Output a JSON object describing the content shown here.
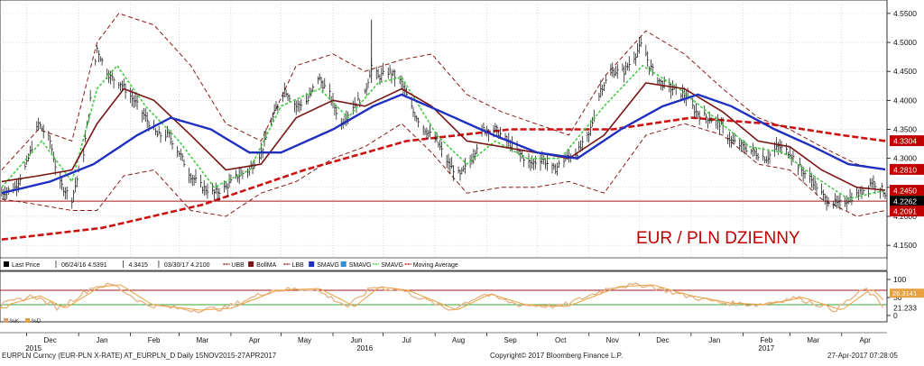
{
  "chart_data": {
    "type": "line",
    "annotation": "EUR / PLN DZIENNY",
    "instrument_line": "EURPLN Curncy (EUR-PLN X-RATE) AT_EURPLN_D  Daily 15NOV2015-27APR2017",
    "copyright": "Copyright© 2017 Bloomberg Finance L.P.",
    "timestamp": "27-Apr-2017 07:28:05",
    "x_range": [
      "2015-11-15",
      "2017-04-27"
    ],
    "ylim": [
      4.13,
      4.57
    ],
    "y_ticks": [
      4.15,
      4.2,
      4.25,
      4.3,
      4.35,
      4.4,
      4.45,
      4.5,
      4.55
    ],
    "y_tick_labels": [
      "4.1500",
      "4.2000",
      "4.2500",
      "4.3000",
      "4.3500",
      "4.4000",
      "4.4500",
      "4.5000",
      "4.5500"
    ],
    "x_ticks": [
      {
        "label": "Dec",
        "date": "2015-12-15"
      },
      {
        "label": "Jan",
        "date": "2016-01-15"
      },
      {
        "label": "Feb",
        "date": "2016-02-15"
      },
      {
        "label": "Mar",
        "date": "2016-03-15"
      },
      {
        "label": "Apr",
        "date": "2016-04-15"
      },
      {
        "label": "May",
        "date": "2016-05-15"
      },
      {
        "label": "Jun",
        "date": "2016-06-15"
      },
      {
        "label": "Jul",
        "date": "2016-07-15"
      },
      {
        "label": "Aug",
        "date": "2016-08-15"
      },
      {
        "label": "Sep",
        "date": "2016-09-15"
      },
      {
        "label": "Oct",
        "date": "2016-10-15"
      },
      {
        "label": "Nov",
        "date": "2016-11-15"
      },
      {
        "label": "Dec",
        "date": "2016-12-15"
      },
      {
        "label": "Jan",
        "date": "2017-01-15"
      },
      {
        "label": "Feb",
        "date": "2017-02-15"
      },
      {
        "label": "Mar",
        "date": "2017-03-15"
      },
      {
        "label": "Apr",
        "date": "2017-04-15"
      }
    ],
    "year_labels": [
      {
        "label": "2015",
        "date": "2015-12-05"
      },
      {
        "label": "2016",
        "date": "2016-06-20"
      },
      {
        "label": "2017",
        "date": "2017-02-15"
      }
    ],
    "support_level": 4.2262,
    "current_labels": [
      {
        "value": 4.3304,
        "label": "4.3304",
        "color": "#c00000"
      },
      {
        "value": 4.281,
        "label": "4.2810",
        "color": "#c00000"
      },
      {
        "value": 4.245,
        "label": "4.2450",
        "color": "#c00000"
      },
      {
        "value": 4.2262,
        "label": "4.2262",
        "color": "#000000"
      },
      {
        "value": 4.2091,
        "label": "4.2091",
        "color": "#c00000"
      }
    ],
    "legend": [
      {
        "text": "Last Price",
        "color": "#000000",
        "kind": "box"
      },
      {
        "text": "06/24/16 4.5391",
        "color": "#555555",
        "kind": "tick"
      },
      {
        "text": "4.3415",
        "color": "#555555",
        "kind": "tick"
      },
      {
        "text": "03/30/17 4.2100",
        "color": "#555555",
        "kind": "tick"
      },
      {
        "text": "UBB",
        "color": "#8b1a1a",
        "kind": "dash"
      },
      {
        "text": "BollMA",
        "color": "#7a1515",
        "kind": "box"
      },
      {
        "text": "LBB",
        "color": "#8b1a1a",
        "kind": "dash"
      },
      {
        "text": "SMAVG",
        "color": "#1f2fbf",
        "kind": "box"
      },
      {
        "text": "SMAVG",
        "color": "#2f8ed8",
        "kind": "box"
      },
      {
        "text": "SMAVG",
        "color": "#44cc44",
        "kind": "dash"
      },
      {
        "text": "Moving Average",
        "color": "#cc1111",
        "kind": "dash"
      }
    ],
    "price": [
      [
        "2015-11-16",
        4.24
      ],
      [
        "2015-11-24",
        4.25
      ],
      [
        "2015-12-01",
        4.29
      ],
      [
        "2015-12-08",
        4.36
      ],
      [
        "2015-12-15",
        4.33
      ],
      [
        "2015-12-20",
        4.26
      ],
      [
        "2015-12-28",
        4.23
      ],
      [
        "2016-01-04",
        4.31
      ],
      [
        "2016-01-08",
        4.4
      ],
      [
        "2016-01-12",
        4.49
      ],
      [
        "2016-01-16",
        4.46
      ],
      [
        "2016-01-20",
        4.44
      ],
      [
        "2016-01-26",
        4.43
      ],
      [
        "2016-02-03",
        4.4
      ],
      [
        "2016-02-10",
        4.37
      ],
      [
        "2016-02-17",
        4.34
      ],
      [
        "2016-02-24",
        4.34
      ],
      [
        "2016-03-01",
        4.31
      ],
      [
        "2016-03-08",
        4.27
      ],
      [
        "2016-03-15",
        4.25
      ],
      [
        "2016-03-22",
        4.24
      ],
      [
        "2016-03-29",
        4.25
      ],
      [
        "2016-04-05",
        4.27
      ],
      [
        "2016-04-12",
        4.28
      ],
      [
        "2016-04-19",
        4.31
      ],
      [
        "2016-04-26",
        4.37
      ],
      [
        "2016-05-03",
        4.42
      ],
      [
        "2016-05-10",
        4.39
      ],
      [
        "2016-05-17",
        4.4
      ],
      [
        "2016-05-23",
        4.44
      ],
      [
        "2016-05-30",
        4.41
      ],
      [
        "2016-06-06",
        4.36
      ],
      [
        "2016-06-13",
        4.39
      ],
      [
        "2016-06-20",
        4.41
      ],
      [
        "2016-06-24",
        4.46
      ],
      [
        "2016-06-28",
        4.44
      ],
      [
        "2016-07-05",
        4.45
      ],
      [
        "2016-07-12",
        4.43
      ],
      [
        "2016-07-19",
        4.38
      ],
      [
        "2016-07-26",
        4.35
      ],
      [
        "2016-08-02",
        4.33
      ],
      [
        "2016-08-09",
        4.29
      ],
      [
        "2016-08-16",
        4.27
      ],
      [
        "2016-08-23",
        4.3
      ],
      [
        "2016-08-30",
        4.35
      ],
      [
        "2016-09-06",
        4.35
      ],
      [
        "2016-09-13",
        4.33
      ],
      [
        "2016-09-20",
        4.31
      ],
      [
        "2016-09-27",
        4.29
      ],
      [
        "2016-10-04",
        4.3
      ],
      [
        "2016-10-11",
        4.28
      ],
      [
        "2016-10-18",
        4.3
      ],
      [
        "2016-10-25",
        4.31
      ],
      [
        "2016-11-01",
        4.34
      ],
      [
        "2016-11-08",
        4.42
      ],
      [
        "2016-11-15",
        4.45
      ],
      [
        "2016-11-22",
        4.45
      ],
      [
        "2016-11-29",
        4.48
      ],
      [
        "2016-12-03",
        4.5
      ],
      [
        "2016-12-07",
        4.46
      ],
      [
        "2016-12-14",
        4.43
      ],
      [
        "2016-12-21",
        4.42
      ],
      [
        "2016-12-28",
        4.41
      ],
      [
        "2017-01-04",
        4.38
      ],
      [
        "2017-01-11",
        4.37
      ],
      [
        "2017-01-18",
        4.36
      ],
      [
        "2017-01-25",
        4.33
      ],
      [
        "2017-02-01",
        4.32
      ],
      [
        "2017-02-08",
        4.31
      ],
      [
        "2017-02-15",
        4.3
      ],
      [
        "2017-02-22",
        4.32
      ],
      [
        "2017-03-01",
        4.31
      ],
      [
        "2017-03-08",
        4.28
      ],
      [
        "2017-03-15",
        4.26
      ],
      [
        "2017-03-22",
        4.23
      ],
      [
        "2017-03-30",
        4.22
      ],
      [
        "2017-04-05",
        4.23
      ],
      [
        "2017-04-12",
        4.24
      ],
      [
        "2017-04-19",
        4.26
      ],
      [
        "2017-04-24",
        4.25
      ],
      [
        "2017-04-27",
        4.24
      ]
    ],
    "bollma": [
      [
        "2015-11-16",
        4.26
      ],
      [
        "2015-12-08",
        4.27
      ],
      [
        "2015-12-28",
        4.28
      ],
      [
        "2016-01-12",
        4.36
      ],
      [
        "2016-01-28",
        4.42
      ],
      [
        "2016-02-15",
        4.4
      ],
      [
        "2016-03-08",
        4.34
      ],
      [
        "2016-03-29",
        4.28
      ],
      [
        "2016-04-19",
        4.29
      ],
      [
        "2016-05-10",
        4.37
      ],
      [
        "2016-06-01",
        4.4
      ],
      [
        "2016-06-20",
        4.39
      ],
      [
        "2016-07-12",
        4.42
      ],
      [
        "2016-07-30",
        4.39
      ],
      [
        "2016-08-20",
        4.33
      ],
      [
        "2016-09-10",
        4.32
      ],
      [
        "2016-09-30",
        4.31
      ],
      [
        "2016-10-20",
        4.3
      ],
      [
        "2016-11-10",
        4.34
      ],
      [
        "2016-12-05",
        4.43
      ],
      [
        "2016-12-28",
        4.42
      ],
      [
        "2017-01-20",
        4.38
      ],
      [
        "2017-02-10",
        4.33
      ],
      [
        "2017-03-01",
        4.32
      ],
      [
        "2017-03-20",
        4.28
      ],
      [
        "2017-04-10",
        4.25
      ],
      [
        "2017-04-27",
        4.245
      ]
    ],
    "ubb": [
      [
        "2015-11-16",
        4.28
      ],
      [
        "2015-12-08",
        4.35
      ],
      [
        "2015-12-28",
        4.33
      ],
      [
        "2016-01-12",
        4.5
      ],
      [
        "2016-01-25",
        4.55
      ],
      [
        "2016-02-15",
        4.53
      ],
      [
        "2016-03-08",
        4.46
      ],
      [
        "2016-03-29",
        4.36
      ],
      [
        "2016-04-19",
        4.33
      ],
      [
        "2016-05-10",
        4.46
      ],
      [
        "2016-06-01",
        4.48
      ],
      [
        "2016-06-20",
        4.45
      ],
      [
        "2016-07-12",
        4.47
      ],
      [
        "2016-07-30",
        4.48
      ],
      [
        "2016-08-20",
        4.41
      ],
      [
        "2016-09-10",
        4.38
      ],
      [
        "2016-09-30",
        4.36
      ],
      [
        "2016-10-20",
        4.34
      ],
      [
        "2016-11-10",
        4.44
      ],
      [
        "2016-12-05",
        4.52
      ],
      [
        "2016-12-28",
        4.48
      ],
      [
        "2017-01-20",
        4.42
      ],
      [
        "2017-02-10",
        4.37
      ],
      [
        "2017-03-01",
        4.35
      ],
      [
        "2017-03-20",
        4.32
      ],
      [
        "2017-04-10",
        4.29
      ],
      [
        "2017-04-27",
        4.28
      ]
    ],
    "lbb": [
      [
        "2015-11-16",
        4.23
      ],
      [
        "2015-12-08",
        4.22
      ],
      [
        "2015-12-28",
        4.21
      ],
      [
        "2016-01-12",
        4.21
      ],
      [
        "2016-01-28",
        4.27
      ],
      [
        "2016-02-15",
        4.28
      ],
      [
        "2016-03-08",
        4.21
      ],
      [
        "2016-03-29",
        4.2
      ],
      [
        "2016-04-19",
        4.24
      ],
      [
        "2016-05-10",
        4.26
      ],
      [
        "2016-06-01",
        4.3
      ],
      [
        "2016-06-20",
        4.32
      ],
      [
        "2016-07-12",
        4.36
      ],
      [
        "2016-07-30",
        4.31
      ],
      [
        "2016-08-20",
        4.24
      ],
      [
        "2016-09-10",
        4.25
      ],
      [
        "2016-09-30",
        4.25
      ],
      [
        "2016-10-20",
        4.26
      ],
      [
        "2016-11-10",
        4.24
      ],
      [
        "2016-12-05",
        4.34
      ],
      [
        "2016-12-28",
        4.36
      ],
      [
        "2017-01-20",
        4.34
      ],
      [
        "2017-02-10",
        4.29
      ],
      [
        "2017-03-01",
        4.28
      ],
      [
        "2017-03-20",
        4.23
      ],
      [
        "2017-04-10",
        4.2
      ],
      [
        "2017-04-27",
        4.21
      ]
    ],
    "sma_short": [
      [
        "2015-11-16",
        4.25
      ],
      [
        "2015-12-10",
        4.33
      ],
      [
        "2015-12-28",
        4.26
      ],
      [
        "2016-01-12",
        4.42
      ],
      [
        "2016-01-24",
        4.46
      ],
      [
        "2016-02-10",
        4.39
      ],
      [
        "2016-03-01",
        4.33
      ],
      [
        "2016-03-22",
        4.25
      ],
      [
        "2016-04-12",
        4.28
      ],
      [
        "2016-05-01",
        4.39
      ],
      [
        "2016-05-24",
        4.42
      ],
      [
        "2016-06-10",
        4.37
      ],
      [
        "2016-06-28",
        4.43
      ],
      [
        "2016-07-12",
        4.44
      ],
      [
        "2016-08-02",
        4.34
      ],
      [
        "2016-08-20",
        4.29
      ],
      [
        "2016-09-06",
        4.33
      ],
      [
        "2016-09-25",
        4.3
      ],
      [
        "2016-10-15",
        4.3
      ],
      [
        "2016-11-10",
        4.39
      ],
      [
        "2016-12-03",
        4.46
      ],
      [
        "2016-12-25",
        4.42
      ],
      [
        "2017-01-15",
        4.37
      ],
      [
        "2017-02-05",
        4.32
      ],
      [
        "2017-02-25",
        4.31
      ],
      [
        "2017-03-15",
        4.27
      ],
      [
        "2017-04-05",
        4.23
      ],
      [
        "2017-04-27",
        4.245
      ]
    ],
    "sma_mid": [
      [
        "2015-11-16",
        4.24
      ],
      [
        "2015-12-15",
        4.26
      ],
      [
        "2016-01-10",
        4.29
      ],
      [
        "2016-02-05",
        4.34
      ],
      [
        "2016-02-25",
        4.37
      ],
      [
        "2016-03-20",
        4.35
      ],
      [
        "2016-04-12",
        4.31
      ],
      [
        "2016-05-01",
        4.31
      ],
      [
        "2016-06-01",
        4.35
      ],
      [
        "2016-06-25",
        4.39
      ],
      [
        "2016-07-12",
        4.41
      ],
      [
        "2016-08-05",
        4.38
      ],
      [
        "2016-09-05",
        4.34
      ],
      [
        "2016-10-01",
        4.31
      ],
      [
        "2016-10-25",
        4.3
      ],
      [
        "2016-11-20",
        4.35
      ],
      [
        "2016-12-15",
        4.39
      ],
      [
        "2017-01-05",
        4.41
      ],
      [
        "2017-01-25",
        4.39
      ],
      [
        "2017-02-20",
        4.35
      ],
      [
        "2017-03-15",
        4.32
      ],
      [
        "2017-04-05",
        4.29
      ],
      [
        "2017-04-27",
        4.281
      ]
    ],
    "moving_average": [
      [
        "2015-11-16",
        4.16
      ],
      [
        "2016-01-15",
        4.18
      ],
      [
        "2016-03-15",
        4.22
      ],
      [
        "2016-05-15",
        4.28
      ],
      [
        "2016-07-15",
        4.33
      ],
      [
        "2016-09-15",
        4.35
      ],
      [
        "2016-11-15",
        4.35
      ],
      [
        "2017-01-01",
        4.37
      ],
      [
        "2017-02-15",
        4.36
      ],
      [
        "2017-04-01",
        4.34
      ],
      [
        "2017-04-27",
        4.33
      ]
    ],
    "indicator": {
      "y_ticks": [
        0,
        50,
        100
      ],
      "y_tick_labels": [
        "0",
        "50",
        "100"
      ],
      "levels": [
        30,
        70
      ],
      "current_labels": [
        {
          "value": 21.233,
          "label": "21.233"
        },
        {
          "value": 62,
          "label": "26.3141"
        }
      ],
      "legend": [
        {
          "text": "%K",
          "color": "#d9a070"
        },
        {
          "text": "%D",
          "color": "#e8a040"
        }
      ],
      "k_series": [
        [
          "2015-11-16",
          30
        ],
        [
          "2015-12-05",
          55
        ],
        [
          "2015-12-20",
          20
        ],
        [
          "2016-01-10",
          80
        ],
        [
          "2016-01-22",
          85
        ],
        [
          "2016-02-10",
          30
        ],
        [
          "2016-03-10",
          15
        ],
        [
          "2016-03-28",
          20
        ],
        [
          "2016-04-25",
          70
        ],
        [
          "2016-05-20",
          75
        ],
        [
          "2016-06-10",
          25
        ],
        [
          "2016-06-25",
          80
        ],
        [
          "2016-07-12",
          70
        ],
        [
          "2016-08-10",
          15
        ],
        [
          "2016-08-30",
          60
        ],
        [
          "2016-09-20",
          30
        ],
        [
          "2016-10-15",
          25
        ],
        [
          "2016-11-15",
          80
        ],
        [
          "2016-12-05",
          85
        ],
        [
          "2016-12-28",
          55
        ],
        [
          "2017-01-20",
          35
        ],
        [
          "2017-02-10",
          30
        ],
        [
          "2017-03-05",
          50
        ],
        [
          "2017-03-28",
          15
        ],
        [
          "2017-04-15",
          75
        ],
        [
          "2017-04-27",
          21
        ]
      ]
    }
  }
}
